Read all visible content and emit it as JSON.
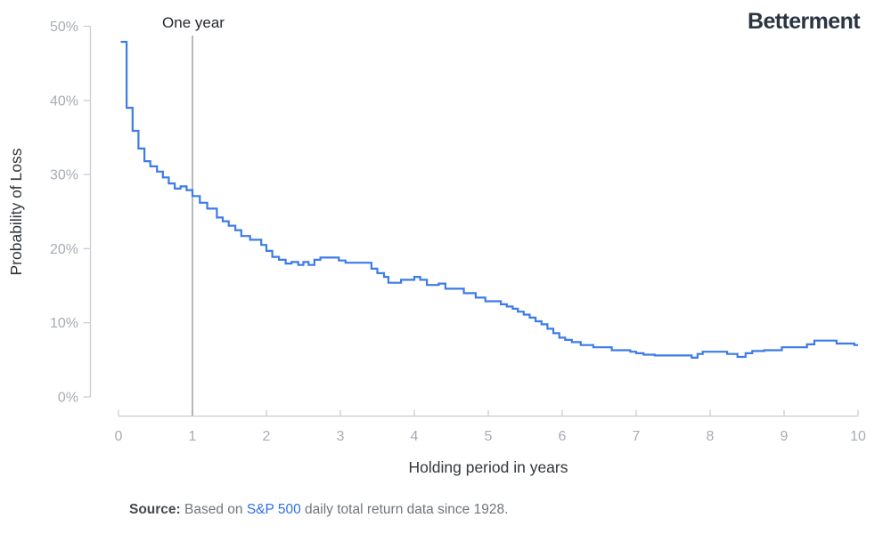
{
  "brand": {
    "name": "Betterment"
  },
  "chart_data": {
    "type": "line",
    "subtype": "step-after",
    "title": "",
    "xlabel": "Holding period in years",
    "ylabel": "Probability of Loss",
    "xlim": [
      0,
      10
    ],
    "ylim": [
      0,
      50
    ],
    "grid": false,
    "legend": "none",
    "x_ticks": [
      "0",
      "1",
      "2",
      "3",
      "4",
      "5",
      "6",
      "7",
      "8",
      "9",
      "10"
    ],
    "x_tick_values": [
      0,
      1,
      2,
      3,
      4,
      5,
      6,
      7,
      8,
      9,
      10
    ],
    "y_ticks": [
      "0%",
      "10%",
      "20%",
      "30%",
      "40%",
      "50%"
    ],
    "y_tick_values": [
      0,
      10,
      20,
      30,
      40,
      50
    ],
    "annotation": {
      "label": "One year",
      "x": 1
    },
    "series": [
      {
        "name": "Probability of loss (%)",
        "steps": [
          [
            0.03,
            47.9
          ],
          [
            0.11,
            39.0
          ],
          [
            0.19,
            35.9
          ],
          [
            0.27,
            33.5
          ],
          [
            0.35,
            31.8
          ],
          [
            0.43,
            31.1
          ],
          [
            0.52,
            30.4
          ],
          [
            0.6,
            29.6
          ],
          [
            0.68,
            28.8
          ],
          [
            0.76,
            28.1
          ],
          [
            0.84,
            28.4
          ],
          [
            0.92,
            27.9
          ],
          [
            1.0,
            27.1
          ],
          [
            1.1,
            26.2
          ],
          [
            1.2,
            25.4
          ],
          [
            1.33,
            24.2
          ],
          [
            1.41,
            23.7
          ],
          [
            1.49,
            23.1
          ],
          [
            1.58,
            22.5
          ],
          [
            1.66,
            21.7
          ],
          [
            1.78,
            21.2
          ],
          [
            1.93,
            20.5
          ],
          [
            2.0,
            19.7
          ],
          [
            2.08,
            18.9
          ],
          [
            2.17,
            18.5
          ],
          [
            2.26,
            18.0
          ],
          [
            2.34,
            18.2
          ],
          [
            2.43,
            17.8
          ],
          [
            2.5,
            18.2
          ],
          [
            2.57,
            17.8
          ],
          [
            2.65,
            18.5
          ],
          [
            2.73,
            18.8
          ],
          [
            2.98,
            18.4
          ],
          [
            3.07,
            18.1
          ],
          [
            3.42,
            17.3
          ],
          [
            3.5,
            16.7
          ],
          [
            3.59,
            16.2
          ],
          [
            3.65,
            15.4
          ],
          [
            3.82,
            15.8
          ],
          [
            4.0,
            16.2
          ],
          [
            4.08,
            15.8
          ],
          [
            4.17,
            15.1
          ],
          [
            4.33,
            15.3
          ],
          [
            4.42,
            14.6
          ],
          [
            4.67,
            14.0
          ],
          [
            4.83,
            13.4
          ],
          [
            4.96,
            12.9
          ],
          [
            5.17,
            12.5
          ],
          [
            5.25,
            12.2
          ],
          [
            5.33,
            11.9
          ],
          [
            5.4,
            11.5
          ],
          [
            5.48,
            11.1
          ],
          [
            5.56,
            10.7
          ],
          [
            5.64,
            10.2
          ],
          [
            5.72,
            9.8
          ],
          [
            5.8,
            9.2
          ],
          [
            5.88,
            8.6
          ],
          [
            5.96,
            8.0
          ],
          [
            6.04,
            7.7
          ],
          [
            6.13,
            7.4
          ],
          [
            6.25,
            7.0
          ],
          [
            6.42,
            6.7
          ],
          [
            6.67,
            6.3
          ],
          [
            6.92,
            6.1
          ],
          [
            7.0,
            5.9
          ],
          [
            7.1,
            5.7
          ],
          [
            7.25,
            5.6
          ],
          [
            7.75,
            5.3
          ],
          [
            7.83,
            5.8
          ],
          [
            7.9,
            6.1
          ],
          [
            8.23,
            5.8
          ],
          [
            8.37,
            5.4
          ],
          [
            8.48,
            5.9
          ],
          [
            8.57,
            6.2
          ],
          [
            8.73,
            6.3
          ],
          [
            8.97,
            6.7
          ],
          [
            9.31,
            7.1
          ],
          [
            9.41,
            7.6
          ],
          [
            9.71,
            7.2
          ],
          [
            9.95,
            7.0
          ],
          [
            10.0,
            7.0
          ]
        ]
      }
    ],
    "colors": {
      "line": "#3C7BE8",
      "axis": "#C9CED5",
      "tick_text": "#A6ACB5",
      "annotation_line": "#85888D"
    }
  },
  "source": {
    "prefix_bold": "Source:",
    "text_before_link": " Based on ",
    "link_text": "S&P 500",
    "text_after_link": " daily total return data since 1928."
  }
}
